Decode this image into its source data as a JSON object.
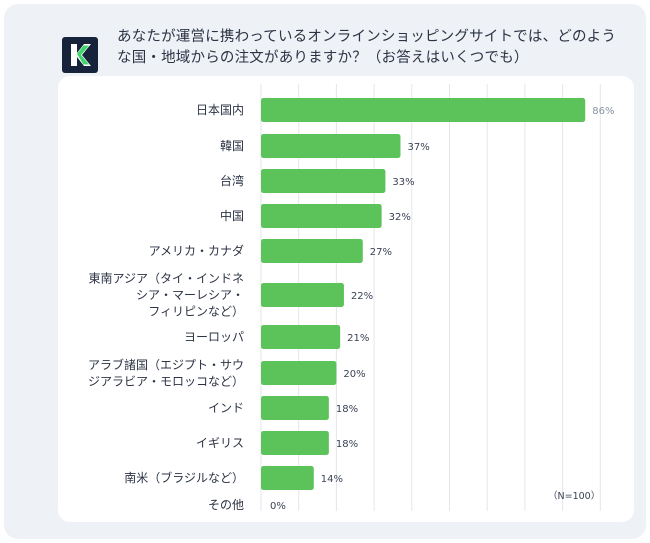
{
  "question": "あなたが運営に携わっているオンラインショッピングサイトでは、どのような国・地域からの注文がありますか？（お答えはいくつでも）",
  "logo": {
    "icon": "k-logo-icon",
    "letter": "K",
    "bg_color": "#17233b",
    "accent_color": "#3cd66a"
  },
  "colors": {
    "bar": "#5bc35a",
    "label_text": "#2b3344",
    "value_text": "#3a4255",
    "first_value_text": "#8a93a3",
    "grid": "#e3e6ec"
  },
  "chart_data": {
    "type": "bar",
    "orientation": "horizontal",
    "categories": [
      [
        "日本国内"
      ],
      [
        "韓国"
      ],
      [
        "台湾"
      ],
      [
        "中国"
      ],
      [
        "アメリカ・カナダ"
      ],
      [
        "東南アジア（タイ・インドネ",
        "シア・マーレシア・",
        "フィリピンなど）"
      ],
      [
        "ヨーロッパ"
      ],
      [
        "アラブ諸国（エジプト・サウ",
        "ジアラビア・モロッコなど）"
      ],
      [
        "インド"
      ],
      [
        "イギリス"
      ],
      [
        "南米（ブラジルなど）"
      ],
      [
        "その他"
      ]
    ],
    "values": [
      86,
      37,
      33,
      32,
      27,
      22,
      21,
      20,
      18,
      18,
      14,
      0
    ],
    "value_labels": [
      "86%",
      "37%",
      "33%",
      "32%",
      "27%",
      "22%",
      "21%",
      "20%",
      "18%",
      "18%",
      "14%",
      "0%"
    ],
    "xlim": [
      0,
      100
    ],
    "grid": true,
    "note": "（N=100）"
  }
}
